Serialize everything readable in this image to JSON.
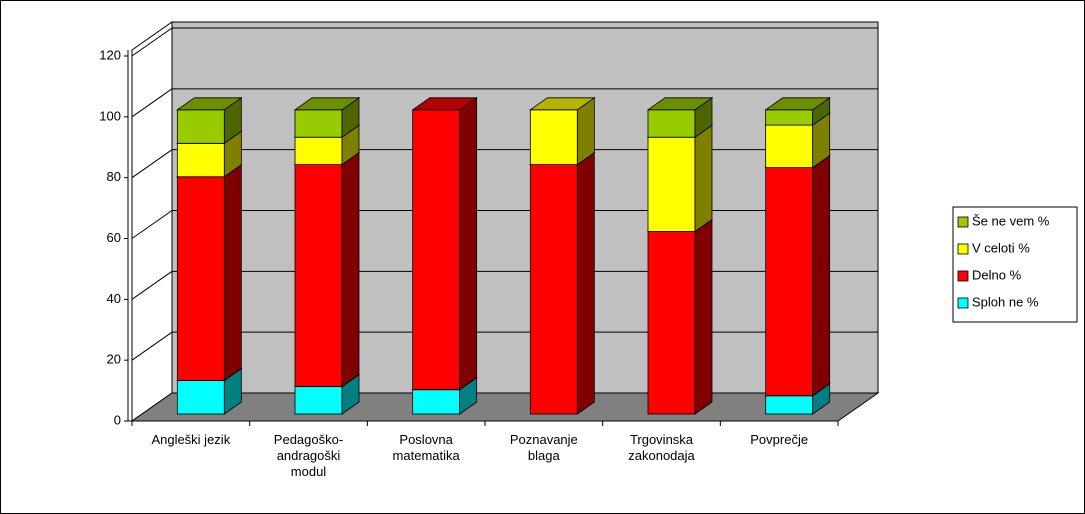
{
  "chart_data": {
    "type": "bar3d_stacked",
    "categories": [
      "Angleški jezik",
      "Pedagoško-andragoški modul",
      "Poslovna matematika",
      "Poznavanje blaga",
      "Trgovinska zakonodaja",
      "Povprečje"
    ],
    "series": [
      {
        "name": "Sploh ne %",
        "color": "#00ffff",
        "values": [
          11,
          9,
          8,
          0,
          0,
          6
        ]
      },
      {
        "name": "Delno %",
        "color": "#ff0000",
        "values": [
          67,
          73,
          92,
          82,
          60,
          75
        ]
      },
      {
        "name": "V celoti %",
        "color": "#ffff00",
        "values": [
          11,
          9,
          0,
          18,
          31,
          14
        ]
      },
      {
        "name": "Še ne vem %",
        "color": "#99cc00",
        "values": [
          11,
          9,
          0,
          0,
          9,
          5
        ]
      }
    ],
    "ylim": [
      0,
      120
    ],
    "yticks": [
      0,
      20,
      40,
      60,
      80,
      100,
      120
    ],
    "grid": true,
    "legend": "right"
  }
}
